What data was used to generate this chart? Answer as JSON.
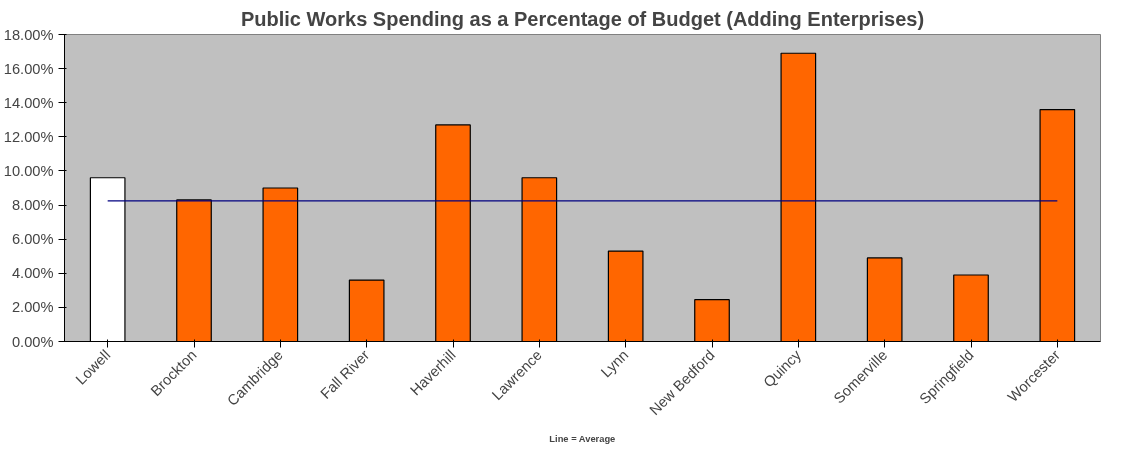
{
  "chart_data": {
    "type": "bar",
    "title": "Public Works Spending as a Percentage of Budget (Adding Enterprises)",
    "categories": [
      "Lowell",
      "Brockton",
      "Cambridge",
      "Fall River",
      "Haverhill",
      "Lawrence",
      "Lynn",
      "New Bedford",
      "Quincy",
      "Somerville",
      "Springfield",
      "Worcester"
    ],
    "values": [
      9.6,
      8.3,
      9.0,
      3.6,
      12.7,
      9.6,
      5.3,
      2.45,
      16.9,
      4.9,
      3.9,
      13.6
    ],
    "colors": [
      "#ffffff",
      "#ff6600",
      "#ff6600",
      "#ff6600",
      "#ff6600",
      "#ff6600",
      "#ff6600",
      "#ff6600",
      "#ff6600",
      "#ff6600",
      "#ff6600",
      "#ff6600"
    ],
    "ylim": [
      0,
      18
    ],
    "yticks": [
      {
        "value": 0,
        "label": "0.00%"
      },
      {
        "value": 2,
        "label": "2.00%"
      },
      {
        "value": 4,
        "label": "4.00%"
      },
      {
        "value": 6,
        "label": "6.00%"
      },
      {
        "value": 8,
        "label": "8.00%"
      },
      {
        "value": 10,
        "label": "10.00%"
      },
      {
        "value": 12,
        "label": "12.00%"
      },
      {
        "value": 14,
        "label": "14.00%"
      },
      {
        "value": 16,
        "label": "16.00%"
      },
      {
        "value": 18,
        "label": "18.00%"
      }
    ],
    "ref_lines": [
      {
        "axis": "y",
        "value": 8.25,
        "color": "#000080"
      }
    ],
    "annotations": [
      "Line = Average"
    ],
    "grid": false
  }
}
